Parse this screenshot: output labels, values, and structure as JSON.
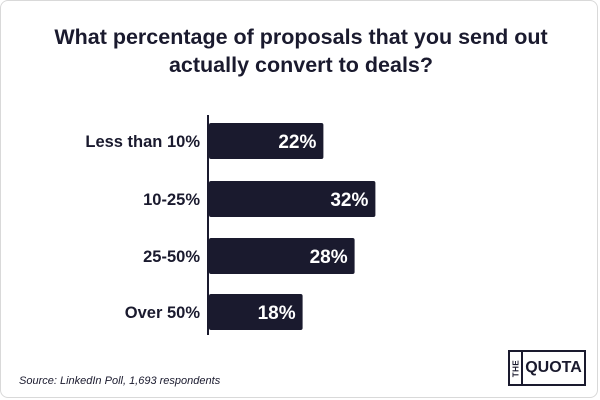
{
  "chart_data": {
    "type": "bar",
    "orientation": "horizontal",
    "title": "What percentage of proposals that you send out actually convert to deals?",
    "categories": [
      "Less than 10%",
      "10-25%",
      "25-50%",
      "Over 50%"
    ],
    "values": [
      22,
      32,
      28,
      18
    ],
    "value_labels": [
      "22%",
      "32%",
      "28%",
      "18%"
    ],
    "unit": "%",
    "xlim": [
      0,
      100
    ],
    "grid": false,
    "legend": "none",
    "bar_color": "#1a1a2e",
    "label_color": "#ffffff"
  },
  "source": "Source: LinkedIn Poll, 1,693 respondents",
  "logo": {
    "the": "THE",
    "quota": "QUOTA"
  },
  "colors": {
    "text": "#1a1a2e",
    "axis": "#1a1a2e",
    "background": "#ffffff"
  }
}
